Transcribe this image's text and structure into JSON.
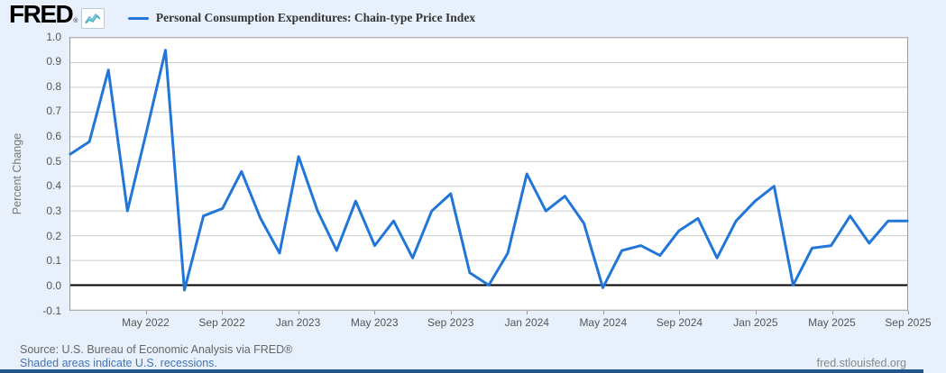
{
  "header": {
    "logo_text": "FRED",
    "registered_mark": "®",
    "legend_label": "Personal Consumption Expenditures: Chain-type Price Index"
  },
  "chart_data": {
    "type": "line",
    "title": "Personal Consumption Expenditures: Chain-type Price Index",
    "ylabel": "Percent Change",
    "ylim": [
      -0.1,
      1.0
    ],
    "grid": true,
    "zero_line": true,
    "legend_position": "top-left",
    "y_tick_labels": [
      "1.0",
      "0.9",
      "0.8",
      "0.7",
      "0.6",
      "0.5",
      "0.4",
      "0.3",
      "0.2",
      "0.1",
      "0.0",
      "-0.1"
    ],
    "x_ticks": [
      {
        "label": "May 2022",
        "i": 4
      },
      {
        "label": "Sep 2022",
        "i": 8
      },
      {
        "label": "Jan 2023",
        "i": 12
      },
      {
        "label": "May 2023",
        "i": 16
      },
      {
        "label": "Sep 2023",
        "i": 20
      },
      {
        "label": "Jan 2024",
        "i": 24
      },
      {
        "label": "May 2024",
        "i": 28
      },
      {
        "label": "Sep 2024",
        "i": 32
      },
      {
        "label": "Jan 2025",
        "i": 36
      },
      {
        "label": "May 2025",
        "i": 40
      },
      {
        "label": "Sep 2025",
        "i": 44
      }
    ],
    "x": [
      "Jan 2022",
      "Feb 2022",
      "Mar 2022",
      "Apr 2022",
      "May 2022",
      "Jun 2022",
      "Jul 2022",
      "Aug 2022",
      "Sep 2022",
      "Oct 2022",
      "Nov 2022",
      "Dec 2022",
      "Jan 2023",
      "Feb 2023",
      "Mar 2023",
      "Apr 2023",
      "May 2023",
      "Jun 2023",
      "Jul 2023",
      "Aug 2023",
      "Sep 2023",
      "Oct 2023",
      "Nov 2023",
      "Dec 2023",
      "Jan 2024",
      "Feb 2024",
      "Mar 2024",
      "Apr 2024",
      "May 2024",
      "Jun 2024",
      "Jul 2024",
      "Aug 2024",
      "Sep 2024",
      "Oct 2024",
      "Nov 2024",
      "Dec 2024",
      "Jan 2025",
      "Feb 2025",
      "Mar 2025",
      "Apr 2025",
      "May 2025",
      "Jun 2025",
      "Jul 2025",
      "Aug 2025",
      "Sep 2025"
    ],
    "values": [
      0.53,
      0.58,
      0.87,
      0.3,
      0.62,
      0.95,
      -0.02,
      0.28,
      0.31,
      0.46,
      0.27,
      0.13,
      0.52,
      0.3,
      0.14,
      0.34,
      0.16,
      0.26,
      0.11,
      0.3,
      0.37,
      0.05,
      0.0,
      0.13,
      0.45,
      0.3,
      0.36,
      0.25,
      -0.01,
      0.14,
      0.16,
      0.12,
      0.22,
      0.27,
      0.11,
      0.26,
      0.34,
      0.4,
      0.0,
      0.15,
      0.16,
      0.28,
      0.17,
      0.26,
      0.26
    ],
    "series": [
      {
        "name": "Personal Consumption Expenditures: Chain-type Price Index",
        "color": "#2276d8"
      }
    ]
  },
  "colors": {
    "accent_line": "#2276d8",
    "background": "#e8f1fb",
    "plot_background": "#ffffff",
    "gridline": "#cccccc",
    "plot_border": "#999999",
    "zero_line": "#000000",
    "tick_text": "#555555",
    "bottom_bar": "#20568c",
    "link": "#4576b5"
  },
  "footer": {
    "source": "Source: U.S. Bureau of Economic Analysis via FRED®",
    "recessions_note": "Shaded areas indicate U.S. recessions.",
    "site": "fred.stlouisfed.org"
  }
}
